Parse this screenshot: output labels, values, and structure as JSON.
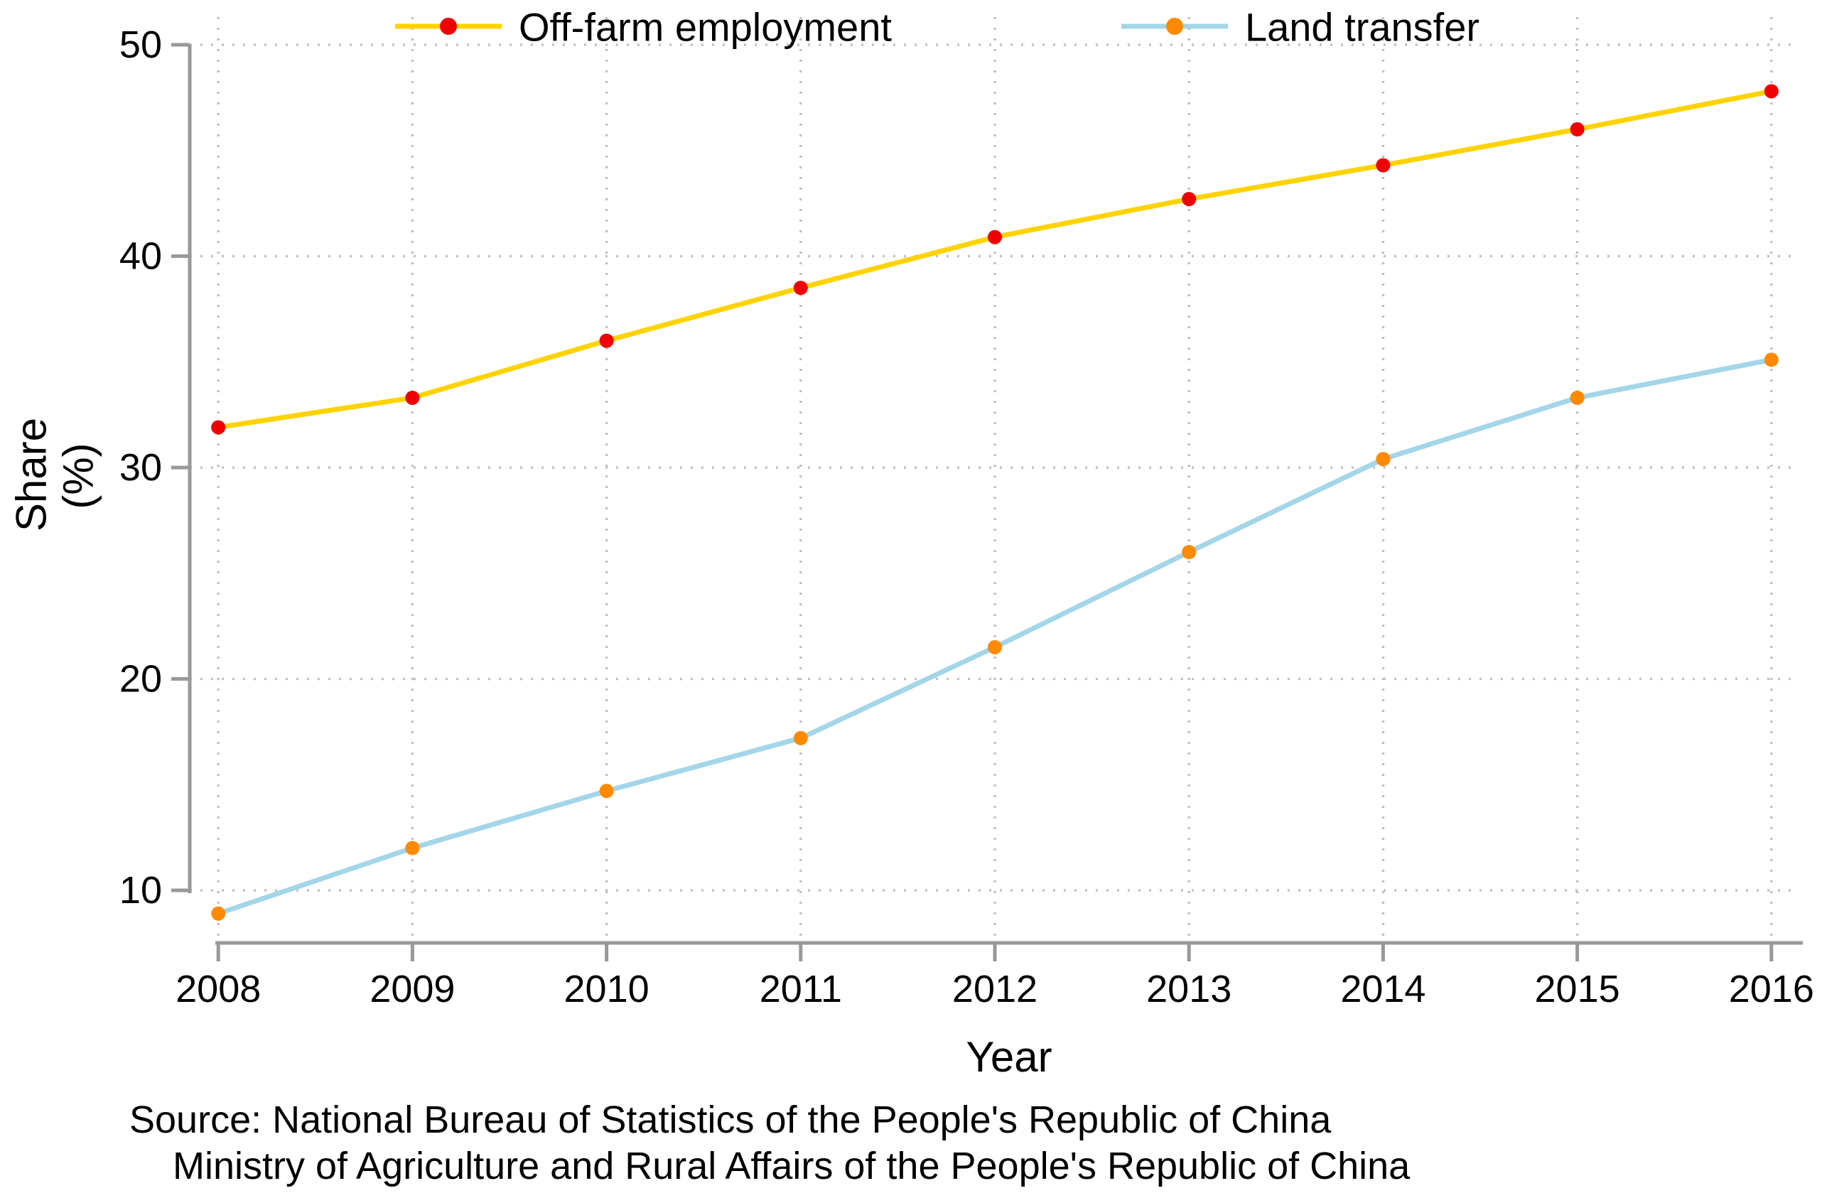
{
  "chart_data": {
    "type": "line",
    "title": "",
    "categories": [
      2008,
      2009,
      2010,
      2011,
      2012,
      2013,
      2014,
      2015,
      2016
    ],
    "series": [
      {
        "name": "Off-farm employment",
        "values": [
          31.9,
          33.3,
          36.0,
          38.5,
          40.9,
          42.7,
          44.3,
          46.0,
          47.8
        ],
        "line_color": "#ffd300",
        "marker_color": "#ee0000"
      },
      {
        "name": "Land transfer",
        "values": [
          8.9,
          12.0,
          14.7,
          17.2,
          21.5,
          26.0,
          30.4,
          33.3,
          35.1
        ],
        "line_color": "#a3d6e8",
        "marker_color": "#ff8a00"
      }
    ],
    "xlabel": "Year",
    "ylabel_lines": [
      "Share",
      "(%)"
    ],
    "yticks": [
      10,
      20,
      30,
      40,
      50
    ],
    "ylim": [
      8,
      50.5
    ],
    "xlim": [
      2008,
      2016
    ],
    "grid": "dotted-both",
    "legend_position": "top-center",
    "colors": {
      "axis": "#999999",
      "grid": "#c2c2c2",
      "text": "#000000"
    }
  },
  "source_note": {
    "line1": "Source: National Bureau of Statistics of the People's Republic of China",
    "line2": "Ministry of Agriculture and Rural Affairs of the People's Republic of China"
  }
}
